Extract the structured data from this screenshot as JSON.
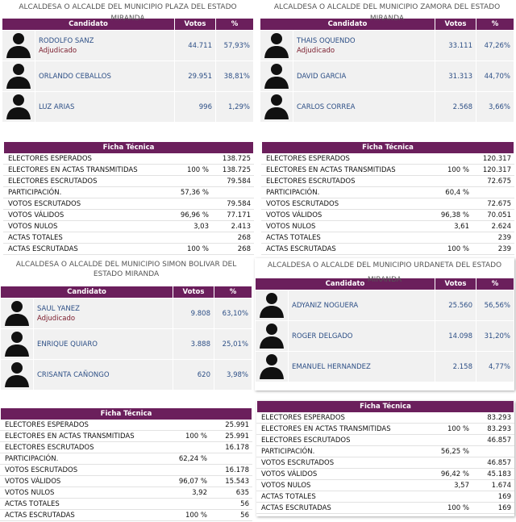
{
  "headers": {
    "candidato": "Candidato",
    "votos": "Votos",
    "pct": "%",
    "ficha": "Ficha Técnica"
  },
  "panels": [
    {
      "title": "ALCALDESA O ALCALDE DEL MUNICIPIO PLAZA DEL ESTADO MIRANDA",
      "candidates": [
        {
          "name": "RODOLFO SANZ",
          "status": "Adjudicado",
          "votes": "44.711",
          "pct": "57,93%"
        },
        {
          "name": "ORLANDO CEBALLOS",
          "status": "",
          "votes": "29.951",
          "pct": "38,81%"
        },
        {
          "name": "LUZ ARIAS",
          "status": "",
          "votes": "996",
          "pct": "1,29%"
        }
      ],
      "ficha": [
        {
          "label": "ELECTORES ESPERADOS",
          "pct": "",
          "value": "138.725"
        },
        {
          "label": "ELECTORES EN ACTAS TRANSMITIDAS",
          "pct": "100 %",
          "value": "138.725"
        },
        {
          "label": "ELECTORES ESCRUTADOS",
          "pct": "",
          "value": "79.584"
        },
        {
          "label": "PARTICIPACIÓN.",
          "pct": "57,36 %",
          "value": ""
        },
        {
          "label": "VOTOS ESCRUTADOS",
          "pct": "",
          "value": "79.584"
        },
        {
          "label": "VOTOS VÁLIDOS",
          "pct": "96,96 %",
          "value": "77.171"
        },
        {
          "label": "VOTOS NULOS",
          "pct": "3,03",
          "value": "2.413"
        },
        {
          "label": "ACTAS TOTALES",
          "pct": "",
          "value": "268"
        },
        {
          "label": "ACTAS ESCRUTADAS",
          "pct": "100 %",
          "value": "268"
        }
      ]
    },
    {
      "title": "ALCALDESA O ALCALDE DEL MUNICIPIO ZAMORA DEL ESTADO MIRANDA",
      "candidates": [
        {
          "name": "THAIS OQUENDO",
          "status": "Adjudicado",
          "votes": "33.111",
          "pct": "47,26%"
        },
        {
          "name": "DAVID GARCIA",
          "status": "",
          "votes": "31.313",
          "pct": "44,70%"
        },
        {
          "name": "CARLOS CORREA",
          "status": "",
          "votes": "2.568",
          "pct": "3,66%"
        }
      ],
      "ficha": [
        {
          "label": "ELECTORES ESPERADOS",
          "pct": "",
          "value": "120.317"
        },
        {
          "label": "ELECTORES EN ACTAS TRANSMITIDAS",
          "pct": "100 %",
          "value": "120.317"
        },
        {
          "label": "ELECTORES ESCRUTADOS",
          "pct": "",
          "value": "72.675"
        },
        {
          "label": "PARTICIPACIÓN.",
          "pct": "60,4 %",
          "value": ""
        },
        {
          "label": "VOTOS ESCRUTADOS",
          "pct": "",
          "value": "72.675"
        },
        {
          "label": "VOTOS VÁLIDOS",
          "pct": "96,38 %",
          "value": "70.051"
        },
        {
          "label": "VOTOS NULOS",
          "pct": "3,61",
          "value": "2.624"
        },
        {
          "label": "ACTAS TOTALES",
          "pct": "",
          "value": "239"
        },
        {
          "label": "ACTAS ESCRUTADAS",
          "pct": "100 %",
          "value": "239"
        }
      ]
    },
    {
      "title": "ALCALDESA O ALCALDE DEL MUNICIPIO SIMON BOLIVAR DEL ESTADO MIRANDA",
      "candidates": [
        {
          "name": "SAUL YANEZ",
          "status": "Adjudicado",
          "votes": "9.808",
          "pct": "63,10%"
        },
        {
          "name": "ENRIQUE QUIARO",
          "status": "",
          "votes": "3.888",
          "pct": "25,01%"
        },
        {
          "name": "CRISANTA CAÑONGO",
          "status": "",
          "votes": "620",
          "pct": "3,98%"
        }
      ],
      "ficha": [
        {
          "label": "ELECTORES ESPERADOS",
          "pct": "",
          "value": "25.991"
        },
        {
          "label": "ELECTORES EN ACTAS TRANSMITIDAS",
          "pct": "100 %",
          "value": "25.991"
        },
        {
          "label": "ELECTORES ESCRUTADOS",
          "pct": "",
          "value": "16.178"
        },
        {
          "label": "PARTICIPACIÓN.",
          "pct": "62,24 %",
          "value": ""
        },
        {
          "label": "VOTOS ESCRUTADOS",
          "pct": "",
          "value": "16.178"
        },
        {
          "label": "VOTOS VÁLIDOS",
          "pct": "96,07 %",
          "value": "15.543"
        },
        {
          "label": "VOTOS NULOS",
          "pct": "3,92",
          "value": "635"
        },
        {
          "label": "ACTAS TOTALES",
          "pct": "",
          "value": "56"
        },
        {
          "label": "ACTAS ESCRUTADAS",
          "pct": "100 %",
          "value": "56"
        }
      ]
    },
    {
      "title": "ALCALDESA O ALCALDE DEL MUNICIPIO URDANETA DEL ESTADO MIRANDA",
      "candidates": [
        {
          "name": "ADYANIZ NOGUERA",
          "status": "",
          "votes": "25.560",
          "pct": "56,56%"
        },
        {
          "name": "ROGER DELGADO",
          "status": "",
          "votes": "14.098",
          "pct": "31,20%"
        },
        {
          "name": "EMANUEL HERNANDEZ",
          "status": "",
          "votes": "2.158",
          "pct": "4,77%"
        }
      ],
      "ficha": [
        {
          "label": "ELECTORES ESPERADOS",
          "pct": "",
          "value": "83.293"
        },
        {
          "label": "ELECTORES EN ACTAS TRANSMITIDAS",
          "pct": "100 %",
          "value": "83.293"
        },
        {
          "label": "ELECTORES ESCRUTADOS",
          "pct": "",
          "value": "46.857"
        },
        {
          "label": "PARTICIPACIÓN.",
          "pct": "56,25 %",
          "value": ""
        },
        {
          "label": "VOTOS ESCRUTADOS",
          "pct": "",
          "value": "46.857"
        },
        {
          "label": "VOTOS VÁLIDOS",
          "pct": "96,42 %",
          "value": "45.183"
        },
        {
          "label": "VOTOS NULOS",
          "pct": "3,57",
          "value": "1.674"
        },
        {
          "label": "ACTAS TOTALES",
          "pct": "",
          "value": "169"
        },
        {
          "label": "ACTAS ESCRUTADAS",
          "pct": "100 %",
          "value": "169"
        }
      ]
    }
  ]
}
